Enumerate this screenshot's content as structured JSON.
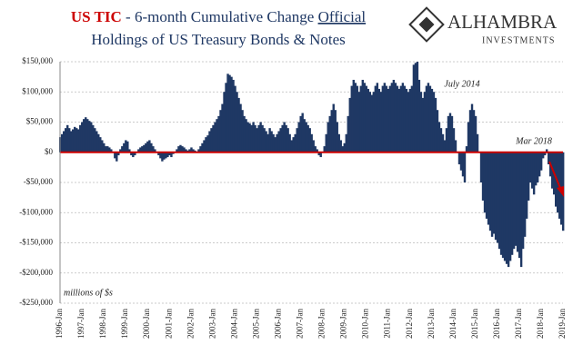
{
  "logo": {
    "name": "ALHAMBRA",
    "tagline": "INVESTMENTS"
  },
  "chart_data": {
    "type": "bar",
    "title": {
      "highlight": "US TIC",
      "line1": "- 6-month Cumulative Change",
      "underlined": "Official",
      "line2": "Holdings of US Treasury Bonds & Notes"
    },
    "annotations": [
      "July 2014",
      "Mar 2018",
      "millions of $s"
    ],
    "color": "#1f3864",
    "zero_line_color": "#cc0000",
    "grid": true,
    "ylim": [
      -250000,
      150000
    ],
    "yticks": [
      {
        "value": -250000,
        "label": "-$250,000"
      },
      {
        "value": -200000,
        "label": "-$200,000"
      },
      {
        "value": -150000,
        "label": "-$150,000"
      },
      {
        "value": -100000,
        "label": "-$100,000"
      },
      {
        "value": -50000,
        "label": "-$50,000"
      },
      {
        "value": 0,
        "label": "$0"
      },
      {
        "value": 50000,
        "label": "$50,000"
      },
      {
        "value": 100000,
        "label": "$100,000"
      },
      {
        "value": 150000,
        "label": "$150,000"
      }
    ],
    "categories": [
      "1996-Jan",
      null,
      null,
      null,
      null,
      null,
      null,
      null,
      null,
      null,
      null,
      null,
      "1997-Jan",
      null,
      null,
      null,
      null,
      null,
      null,
      null,
      null,
      null,
      null,
      null,
      "1998-Jan",
      null,
      null,
      null,
      null,
      null,
      null,
      null,
      null,
      null,
      null,
      null,
      "1999-Jan",
      null,
      null,
      null,
      null,
      null,
      null,
      null,
      null,
      null,
      null,
      null,
      "2000-Jan",
      null,
      null,
      null,
      null,
      null,
      null,
      null,
      null,
      null,
      null,
      null,
      "2001-Jan",
      null,
      null,
      null,
      null,
      null,
      null,
      null,
      null,
      null,
      null,
      null,
      "2002-Jan",
      null,
      null,
      null,
      null,
      null,
      null,
      null,
      null,
      null,
      null,
      null,
      "2003-Jan",
      null,
      null,
      null,
      null,
      null,
      null,
      null,
      null,
      null,
      null,
      null,
      "2004-Jan",
      null,
      null,
      null,
      null,
      null,
      null,
      null,
      null,
      null,
      null,
      null,
      "2005-Jan",
      null,
      null,
      null,
      null,
      null,
      null,
      null,
      null,
      null,
      null,
      null,
      "2006-Jan",
      null,
      null,
      null,
      null,
      null,
      null,
      null,
      null,
      null,
      null,
      null,
      "2007-Jan",
      null,
      null,
      null,
      null,
      null,
      null,
      null,
      null,
      null,
      null,
      null,
      "2008-Jan",
      null,
      null,
      null,
      null,
      null,
      null,
      null,
      null,
      null,
      null,
      null,
      "2009-Jan",
      null,
      null,
      null,
      null,
      null,
      null,
      null,
      null,
      null,
      null,
      null,
      "2010-Jan",
      null,
      null,
      null,
      null,
      null,
      null,
      null,
      null,
      null,
      null,
      null,
      "2011-Jan",
      null,
      null,
      null,
      null,
      null,
      null,
      null,
      null,
      null,
      null,
      null,
      "2012-Jan",
      null,
      null,
      null,
      null,
      null,
      null,
      null,
      null,
      null,
      null,
      null,
      "2013-Jan",
      null,
      null,
      null,
      null,
      null,
      null,
      null,
      null,
      null,
      null,
      null,
      "2014-Jan",
      null,
      null,
      null,
      null,
      null,
      null,
      null,
      null,
      null,
      null,
      null,
      "2015-Jan",
      null,
      null,
      null,
      null,
      null,
      null,
      null,
      null,
      null,
      null,
      null,
      "2016-Jan",
      null,
      null,
      null,
      null,
      null,
      null,
      null,
      null,
      null,
      null,
      null,
      "2017-Jan",
      null,
      null,
      null,
      null,
      null,
      null,
      null,
      null,
      null,
      null,
      null,
      "2018-Jan",
      null,
      null,
      null,
      null,
      null,
      null,
      null,
      null,
      null,
      null,
      null,
      "2019-Jan"
    ],
    "values": [
      25000,
      30000,
      35000,
      40000,
      45000,
      40000,
      35000,
      38000,
      42000,
      40000,
      38000,
      45000,
      50000,
      55000,
      58000,
      55000,
      52000,
      50000,
      45000,
      40000,
      35000,
      30000,
      25000,
      20000,
      15000,
      10000,
      10000,
      8000,
      5000,
      0,
      -10000,
      -15000,
      -5000,
      5000,
      10000,
      15000,
      20000,
      18000,
      5000,
      -5000,
      -8000,
      -5000,
      0,
      5000,
      8000,
      10000,
      12000,
      15000,
      18000,
      20000,
      15000,
      10000,
      5000,
      0,
      -5000,
      -10000,
      -15000,
      -12000,
      -10000,
      -8000,
      -5000,
      -8000,
      -3000,
      0,
      5000,
      10000,
      12000,
      10000,
      8000,
      5000,
      3000,
      5000,
      8000,
      5000,
      3000,
      0,
      5000,
      10000,
      15000,
      20000,
      25000,
      28000,
      35000,
      40000,
      45000,
      50000,
      55000,
      60000,
      70000,
      80000,
      100000,
      115000,
      130000,
      128000,
      125000,
      120000,
      110000,
      100000,
      90000,
      80000,
      70000,
      60000,
      55000,
      50000,
      48000,
      45000,
      50000,
      45000,
      40000,
      45000,
      50000,
      45000,
      40000,
      35000,
      30000,
      40000,
      35000,
      30000,
      25000,
      30000,
      35000,
      40000,
      45000,
      50000,
      45000,
      40000,
      30000,
      20000,
      25000,
      30000,
      40000,
      50000,
      60000,
      65000,
      55000,
      50000,
      45000,
      40000,
      30000,
      20000,
      10000,
      5000,
      -5000,
      -8000,
      0,
      10000,
      30000,
      50000,
      60000,
      70000,
      80000,
      70000,
      50000,
      30000,
      20000,
      10000,
      15000,
      30000,
      60000,
      90000,
      110000,
      120000,
      115000,
      110000,
      100000,
      110000,
      120000,
      115000,
      110000,
      105000,
      100000,
      95000,
      100000,
      110000,
      115000,
      105000,
      100000,
      110000,
      115000,
      110000,
      105000,
      110000,
      115000,
      120000,
      115000,
      110000,
      105000,
      110000,
      115000,
      110000,
      105000,
      100000,
      105000,
      110000,
      145000,
      148000,
      150000,
      120000,
      100000,
      90000,
      100000,
      110000,
      115000,
      110000,
      105000,
      100000,
      90000,
      70000,
      50000,
      40000,
      30000,
      20000,
      40000,
      60000,
      65000,
      60000,
      40000,
      20000,
      0,
      -20000,
      -30000,
      -40000,
      -50000,
      10000,
      50000,
      70000,
      80000,
      70000,
      60000,
      30000,
      0,
      -50000,
      -80000,
      -100000,
      -110000,
      -120000,
      -130000,
      -140000,
      -135000,
      -145000,
      -150000,
      -160000,
      -170000,
      -175000,
      -180000,
      -185000,
      -190000,
      -180000,
      -170000,
      -160000,
      -155000,
      -165000,
      -175000,
      -190000,
      -160000,
      -140000,
      -110000,
      -80000,
      -50000,
      -60000,
      -70000,
      -55000,
      -50000,
      -40000,
      -30000,
      -10000,
      -5000,
      5000,
      -20000,
      -40000,
      -60000,
      -70000,
      -90000,
      -100000,
      -110000,
      -120000,
      -130000
    ]
  }
}
